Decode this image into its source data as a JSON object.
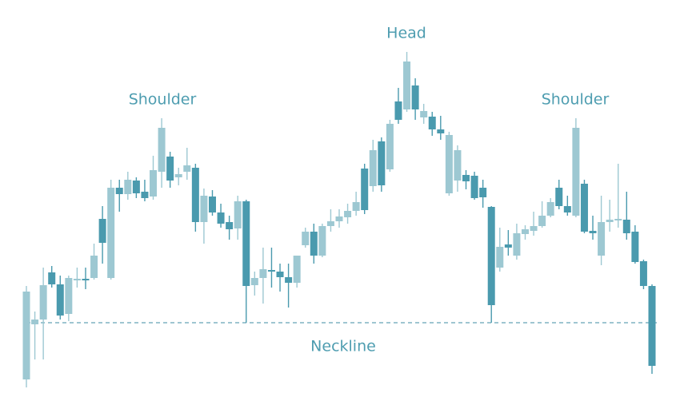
{
  "chart_data": {
    "type": "candlestick",
    "annotations": [
      "Shoulder",
      "Head",
      "Shoulder",
      "Neckline"
    ],
    "up_color": "#9dc8d2",
    "down_color": "#4a9aae",
    "neckline": 96,
    "ylim": [
      0,
      500
    ],
    "open": [
      25,
      94,
      100,
      159,
      144,
      107,
      149,
      151,
      152,
      226,
      152,
      265,
      257,
      274,
      260,
      254,
      285,
      304,
      278,
      285,
      290,
      222,
      254,
      234,
      222,
      214,
      248,
      143,
      152,
      162,
      160,
      153,
      146,
      193,
      210,
      180,
      217,
      223,
      228,
      236,
      289,
      267,
      323,
      288,
      373,
      363,
      393,
      353,
      354,
      338,
      258,
      274,
      281,
      280,
      265,
      241,
      165,
      194,
      180,
      207,
      211,
      217,
      230,
      265,
      242,
      230,
      270,
      211,
      180,
      222,
      224,
      225,
      210,
      173,
      142
    ],
    "high": [
      142,
      110,
      165,
      167,
      155,
      155,
      165,
      165,
      195,
      242,
      275,
      275,
      285,
      278,
      275,
      305,
      352,
      310,
      290,
      315,
      295,
      264,
      262,
      245,
      230,
      255,
      250,
      160,
      190,
      190,
      170,
      170,
      180,
      215,
      220,
      220,
      238,
      238,
      245,
      260,
      295,
      325,
      328,
      350,
      390,
      435,
      402,
      370,
      360,
      355,
      335,
      318,
      287,
      285,
      275,
      242,
      215,
      212,
      220,
      218,
      235,
      248,
      252,
      275,
      255,
      352,
      275,
      230,
      255,
      250,
      295,
      260,
      218,
      175,
      144
    ],
    "low": [
      15,
      50,
      50,
      140,
      100,
      98,
      140,
      138,
      150,
      170,
      150,
      235,
      250,
      252,
      248,
      250,
      265,
      265,
      268,
      275,
      210,
      195,
      230,
      215,
      200,
      200,
      96,
      130,
      120,
      140,
      135,
      115,
      140,
      190,
      170,
      178,
      210,
      215,
      220,
      230,
      232,
      260,
      260,
      285,
      345,
      360,
      350,
      345,
      330,
      325,
      255,
      260,
      263,
      250,
      240,
      96,
      160,
      180,
      175,
      200,
      205,
      215,
      228,
      238,
      230,
      228,
      208,
      200,
      168,
      210,
      215,
      200,
      170,
      138,
      32
    ],
    "close": [
      135,
      100,
      143,
      144,
      105,
      152,
      151,
      149,
      180,
      196,
      265,
      257,
      275,
      258,
      252,
      287,
      340,
      274,
      282,
      293,
      222,
      255,
      234,
      220,
      213,
      248,
      142,
      152,
      163,
      160,
      153,
      146,
      180,
      210,
      180,
      217,
      223,
      229,
      236,
      247,
      237,
      312,
      268,
      345,
      350,
      423,
      363,
      361,
      338,
      333,
      331,
      312,
      273,
      252,
      253,
      118,
      191,
      190,
      208,
      213,
      217,
      230,
      247,
      242,
      234,
      340,
      210,
      208,
      222,
      225,
      226,
      208,
      172,
      142,
      42
    ]
  }
}
